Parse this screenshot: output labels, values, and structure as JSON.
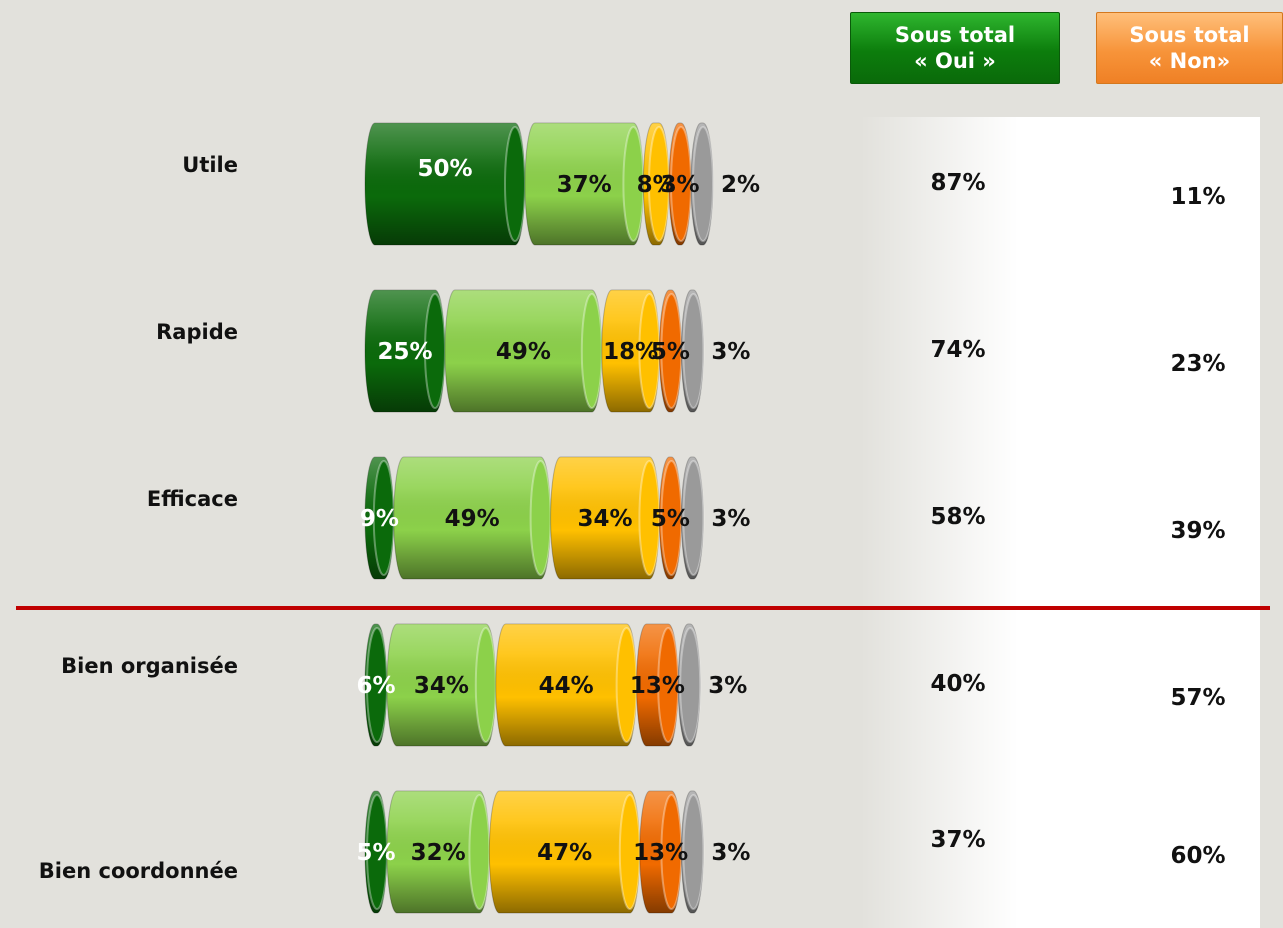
{
  "header": {
    "oui_line1": "Sous total",
    "oui_line2": "« Oui »",
    "non_line1": "Sous total",
    "non_line2": "« Non»"
  },
  "colors": {
    "segments": [
      "#0b6a0b",
      "#8cd14a",
      "#ffc000",
      "#f06a00",
      "#9a9a9a"
    ],
    "header_oui": "#0c7d0c",
    "header_non": "#f7943a",
    "divider": "#c00000"
  },
  "chart_data": {
    "type": "bar",
    "orientation": "horizontal",
    "stacked": true,
    "categories": [
      "Utile",
      "Rapide",
      "Efficace",
      "Bien organisée",
      "Bien coordonnée"
    ],
    "series": [
      {
        "values": [
          50,
          25,
          9,
          6,
          5
        ],
        "labels": [
          "50%",
          "25%",
          "9%",
          "6%",
          "5%"
        ]
      },
      {
        "values": [
          37,
          49,
          49,
          34,
          32
        ],
        "labels": [
          "37%",
          "49%",
          "49%",
          "34%",
          "32%"
        ]
      },
      {
        "values": [
          8,
          18,
          34,
          44,
          47
        ],
        "labels": [
          "8%",
          "18%",
          "34%",
          "44%",
          "47%"
        ]
      },
      {
        "values": [
          3,
          5,
          5,
          13,
          13
        ],
        "labels": [
          "3%",
          "5%",
          "5%",
          "13%",
          "13%"
        ]
      },
      {
        "values": [
          2,
          3,
          3,
          3,
          3
        ],
        "labels": [
          "2%",
          "3%",
          "3%",
          "3%",
          "3%"
        ]
      }
    ],
    "sous_total_oui": [
      "87%",
      "74%",
      "58%",
      "40%",
      "37%"
    ],
    "sous_total_non": [
      "11%",
      "23%",
      "39%",
      "57%",
      "60%"
    ],
    "xlim": [
      0,
      100
    ]
  }
}
